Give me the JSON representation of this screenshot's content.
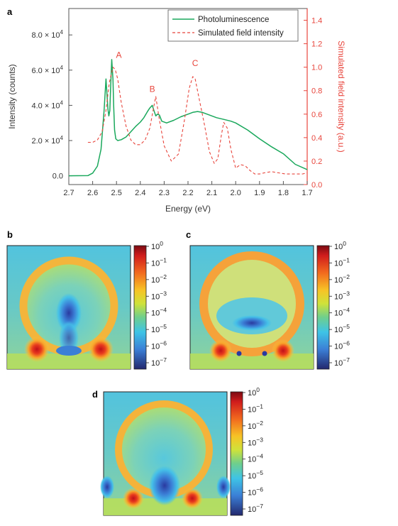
{
  "panels": {
    "a": "a",
    "b": "b",
    "c": "c",
    "d": "d"
  },
  "chart_data": [
    {
      "type": "line",
      "panel": "a",
      "xlabel": "Energy (eV)",
      "ylabel": "Intensity (counts)",
      "y2label": "Simulated field intensity (a.u.)",
      "xlim": [
        2.7,
        1.7
      ],
      "x_reversed": true,
      "ylim": [
        -5000,
        95000
      ],
      "y2lim": [
        0,
        1.5
      ],
      "x_ticks": [
        "2.7",
        "2.6",
        "2.5",
        "2.4",
        "2.3",
        "2.2",
        "2.1",
        "2.0",
        "1.9",
        "1.8",
        "1.7"
      ],
      "x_tick_values": [
        2.7,
        2.6,
        2.5,
        2.4,
        2.3,
        2.2,
        2.1,
        2.0,
        1.9,
        1.8,
        1.7
      ],
      "y_ticks": [
        "0.0",
        "2.0 × 10",
        "4.0 × 10",
        "6.0 × 10",
        "8.0 × 10"
      ],
      "y_tick_values": [
        0,
        20000,
        40000,
        60000,
        80000
      ],
      "y_tick_exponent": "4",
      "y2_ticks": [
        "0.0",
        "0.2",
        "0.4",
        "0.6",
        "0.8",
        "1.0",
        "1.2",
        "1.4"
      ],
      "y2_tick_values": [
        0,
        0.2,
        0.4,
        0.6,
        0.8,
        1.0,
        1.2,
        1.4
      ],
      "legend_position": "top-right",
      "colors": {
        "pl": "#1aa85c",
        "sim": "#e8453c"
      },
      "annotations": [
        {
          "text": "A",
          "x": 2.49,
          "y2": 1.08
        },
        {
          "text": "B",
          "x": 2.35,
          "y2": 0.79
        },
        {
          "text": "C",
          "x": 2.17,
          "y2": 1.01
        }
      ],
      "series": [
        {
          "name": "Photoluminescence",
          "axis": "left",
          "style": "solid",
          "x": [
            2.7,
            2.62,
            2.6,
            2.58,
            2.565,
            2.552,
            2.544,
            2.536,
            2.532,
            2.528,
            2.524,
            2.52,
            2.515,
            2.512,
            2.508,
            2.503,
            2.495,
            2.48,
            2.46,
            2.44,
            2.42,
            2.4,
            2.385,
            2.37,
            2.36,
            2.35,
            2.343,
            2.335,
            2.328,
            2.32,
            2.31,
            2.29,
            2.26,
            2.23,
            2.2,
            2.18,
            2.16,
            2.14,
            2.12,
            2.1,
            2.08,
            2.05,
            2.02,
            2.0,
            1.95,
            1.9,
            1.85,
            1.8,
            1.75,
            1.7
          ],
          "y": [
            0,
            100,
            1500,
            5500,
            15000,
            37000,
            55000,
            38000,
            34000,
            37000,
            52000,
            66000,
            55000,
            40000,
            26000,
            21000,
            20000,
            20500,
            22000,
            25000,
            28000,
            30500,
            33000,
            36500,
            38500,
            40000,
            37000,
            34000,
            35000,
            34500,
            31000,
            30000,
            31500,
            33500,
            35000,
            36000,
            36500,
            36000,
            35000,
            34000,
            33000,
            32000,
            31000,
            30000,
            26000,
            21000,
            16500,
            12500,
            6500,
            3500
          ]
        },
        {
          "name": "Simulated field intensity",
          "axis": "right",
          "style": "dashed",
          "x": [
            2.62,
            2.6,
            2.58,
            2.56,
            2.545,
            2.53,
            2.515,
            2.505,
            2.495,
            2.48,
            2.46,
            2.44,
            2.42,
            2.4,
            2.38,
            2.36,
            2.345,
            2.335,
            2.32,
            2.3,
            2.27,
            2.24,
            2.215,
            2.195,
            2.18,
            2.17,
            2.155,
            2.13,
            2.11,
            2.09,
            2.075,
            2.06,
            2.05,
            2.035,
            2.02,
            2.0,
            1.98,
            1.96,
            1.94,
            1.92,
            1.9,
            1.88,
            1.85,
            1.82,
            1.79,
            1.76,
            1.72,
            1.7
          ],
          "y": [
            0.36,
            0.36,
            0.38,
            0.45,
            0.62,
            0.87,
            1.0,
            0.98,
            0.9,
            0.7,
            0.5,
            0.38,
            0.34,
            0.34,
            0.38,
            0.48,
            0.65,
            0.75,
            0.55,
            0.33,
            0.2,
            0.26,
            0.55,
            0.82,
            0.92,
            0.9,
            0.75,
            0.5,
            0.28,
            0.18,
            0.22,
            0.42,
            0.53,
            0.48,
            0.3,
            0.14,
            0.17,
            0.16,
            0.12,
            0.09,
            0.09,
            0.1,
            0.11,
            0.1,
            0.09,
            0.09,
            0.09,
            0.1
          ]
        }
      ]
    },
    {
      "type": "heatmap",
      "panel": "b",
      "colorbar_scale": "log",
      "colorbar_ticks": [
        {
          "base": "10",
          "exp": "0"
        },
        {
          "base": "10",
          "exp": "−1"
        },
        {
          "base": "10",
          "exp": "−2"
        },
        {
          "base": "10",
          "exp": "−3"
        },
        {
          "base": "10",
          "exp": "−4"
        },
        {
          "base": "10",
          "exp": "−5"
        },
        {
          "base": "10",
          "exp": "−6"
        },
        {
          "base": "10",
          "exp": "−7"
        }
      ]
    },
    {
      "type": "heatmap",
      "panel": "c",
      "colorbar_scale": "log",
      "colorbar_ticks": [
        {
          "base": "10",
          "exp": "0"
        },
        {
          "base": "10",
          "exp": "−1"
        },
        {
          "base": "10",
          "exp": "−2"
        },
        {
          "base": "10",
          "exp": "−3"
        },
        {
          "base": "10",
          "exp": "−4"
        },
        {
          "base": "10",
          "exp": "−5"
        },
        {
          "base": "10",
          "exp": "−6"
        },
        {
          "base": "10",
          "exp": "−7"
        }
      ]
    },
    {
      "type": "heatmap",
      "panel": "d",
      "colorbar_scale": "log",
      "colorbar_ticks": [
        {
          "base": "10",
          "exp": "0"
        },
        {
          "base": "10",
          "exp": "−1"
        },
        {
          "base": "10",
          "exp": "−2"
        },
        {
          "base": "10",
          "exp": "−3"
        },
        {
          "base": "10",
          "exp": "−4"
        },
        {
          "base": "10",
          "exp": "−5"
        },
        {
          "base": "10",
          "exp": "−6"
        },
        {
          "base": "10",
          "exp": "−7"
        }
      ]
    }
  ]
}
